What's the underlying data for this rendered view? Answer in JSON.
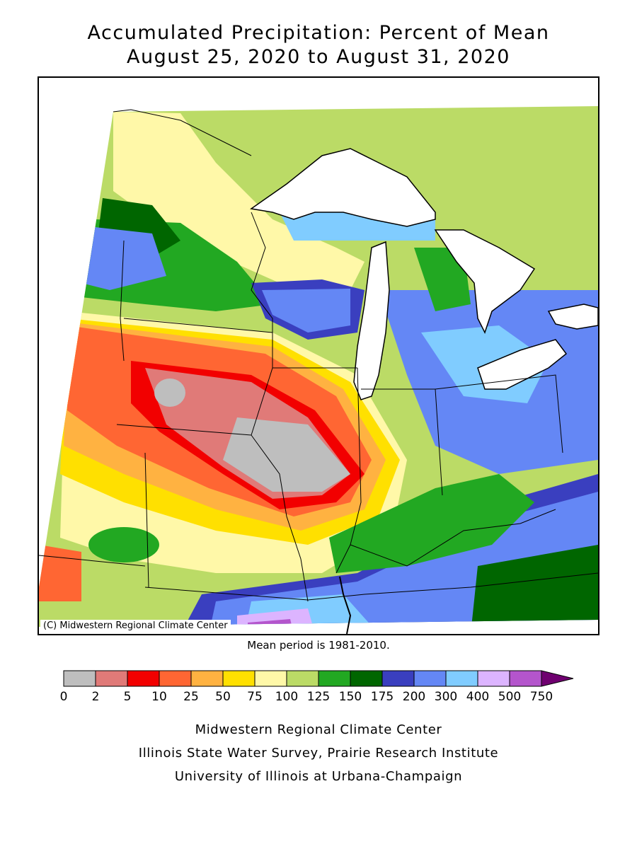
{
  "title_line1": "Accumulated Precipitation: Percent of Mean",
  "title_line2": "August 25, 2020 to August 31, 2020",
  "copyright": "(C) Midwestern Regional Climate Center",
  "mean_note": "Mean period is 1981-2010.",
  "legend": {
    "ticks": [
      "0",
      "2",
      "5",
      "10",
      "25",
      "50",
      "75",
      "100",
      "125",
      "150",
      "175",
      "200",
      "300",
      "400",
      "500",
      "750"
    ],
    "colors": [
      "#bebebe",
      "#e07a78",
      "#f20000",
      "#ff6633",
      "#ffb241",
      "#ffe000",
      "#fff8a8",
      "#bbdb66",
      "#22a822",
      "#006600",
      "#3a3fbf",
      "#6487f5",
      "#80ccff",
      "#dcb4ff",
      "#b455cc",
      "#6f0070"
    ]
  },
  "footer": {
    "line1": "Midwestern Regional Climate Center",
    "line2": "Illinois State Water Survey, Prairie Research Institute",
    "line3": "University of Illinois at Urbana-Champaign"
  }
}
